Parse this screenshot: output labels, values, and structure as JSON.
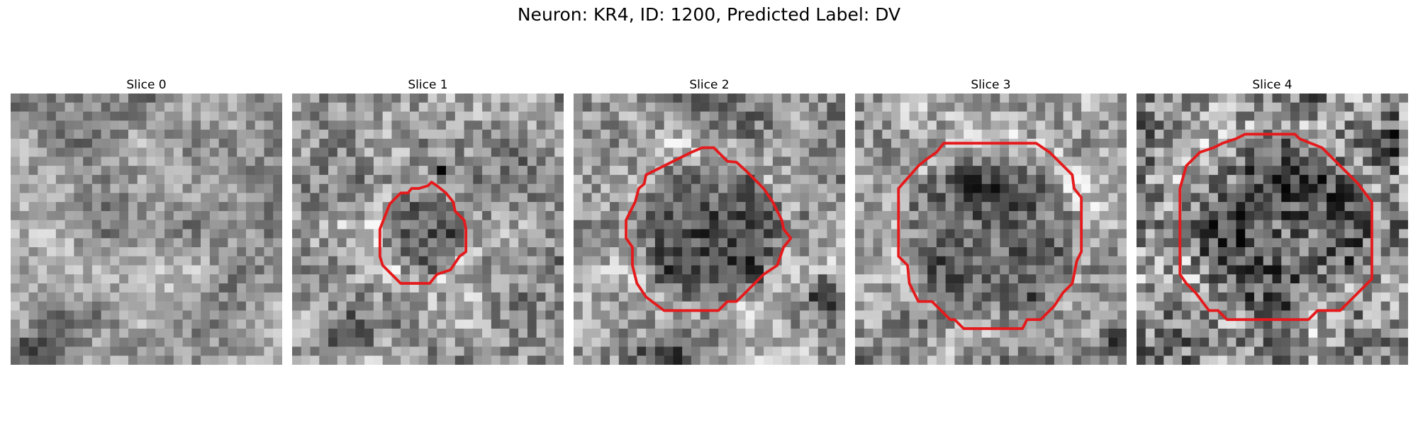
{
  "figure": {
    "title": "Neuron: KR4, ID: 1200, Predicted Label: DV",
    "outline_color": "#e41a1c",
    "colormap": "grayscale"
  },
  "slices": [
    {
      "title": "Slice 0",
      "has_outline": false
    },
    {
      "title": "Slice 1",
      "has_outline": true
    },
    {
      "title": "Slice 2",
      "has_outline": true
    },
    {
      "title": "Slice 3",
      "has_outline": true
    },
    {
      "title": "Slice 4",
      "has_outline": true
    }
  ]
}
